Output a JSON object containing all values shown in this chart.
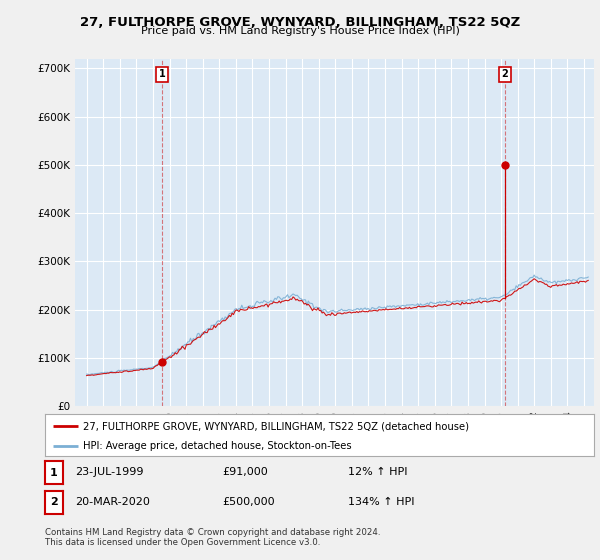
{
  "title": "27, FULTHORPE GROVE, WYNYARD, BILLINGHAM, TS22 5QZ",
  "subtitle": "Price paid vs. HM Land Registry's House Price Index (HPI)",
  "background_color": "#f0f0f0",
  "plot_background_color": "#dce9f5",
  "grid_color": "#ffffff",
  "red_color": "#cc0000",
  "blue_color": "#7bafd4",
  "sale1_date": "23-JUL-1999",
  "sale1_price": 91000,
  "sale2_date": "20-MAR-2020",
  "sale2_price": 500000,
  "yticks": [
    0,
    100000,
    200000,
    300000,
    400000,
    500000,
    600000,
    700000
  ],
  "ytick_labels": [
    "£0",
    "£100K",
    "£200K",
    "£300K",
    "£400K",
    "£500K",
    "£600K",
    "£700K"
  ],
  "legend_label1": "27, FULTHORPE GROVE, WYNYARD, BILLINGHAM, TS22 5QZ (detached house)",
  "legend_label2": "HPI: Average price, detached house, Stockton-on-Tees",
  "footnote": "Contains HM Land Registry data © Crown copyright and database right 2024.\nThis data is licensed under the Open Government Licence v3.0.",
  "table_row1": [
    "1",
    "23-JUL-1999",
    "£91,000",
    "12% ↑ HPI"
  ],
  "table_row2": [
    "2",
    "20-MAR-2020",
    "£500,000",
    "134% ↑ HPI"
  ]
}
